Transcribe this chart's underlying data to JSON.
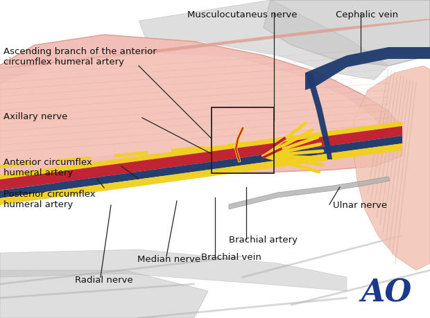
{
  "bg_color": "#ffffff",
  "muscle_color": "#f0b8b0",
  "muscle_color_dark": "#d89888",
  "muscle_fiber_color": "#e0a090",
  "gray_light": "#d0d0d0",
  "gray_mid": "#b0b0b0",
  "gray_dark": "#909090",
  "blue_dark": "#1e3a6e",
  "red_artery": "#c02030",
  "yellow_nerve": "#f0d020",
  "ao_color": "#1a3a8a",
  "text_color": "#111111",
  "line_color": "#222222",
  "labels": {
    "musculocutaneus_nerve": "Musculocutaneus nerve",
    "cephalic_vein": "Cephalic vein",
    "ascending_branch": "Ascending branch of the anterior\ncircumflex humeral artery",
    "axillary_nerve": "Axillary nerve",
    "anterior_circumflex": "Anterior circumflex\nhumeral artery",
    "posterior_circumflex": "Posterior circumflex\nhumeral artery",
    "ulnar_nerve": "Ulnar nerve",
    "brachial_artery": "Brachial artery",
    "brachial_vein": "Brachial vein",
    "median_nerve": "Median nerve",
    "radial_nerve": "Radial nerve"
  }
}
